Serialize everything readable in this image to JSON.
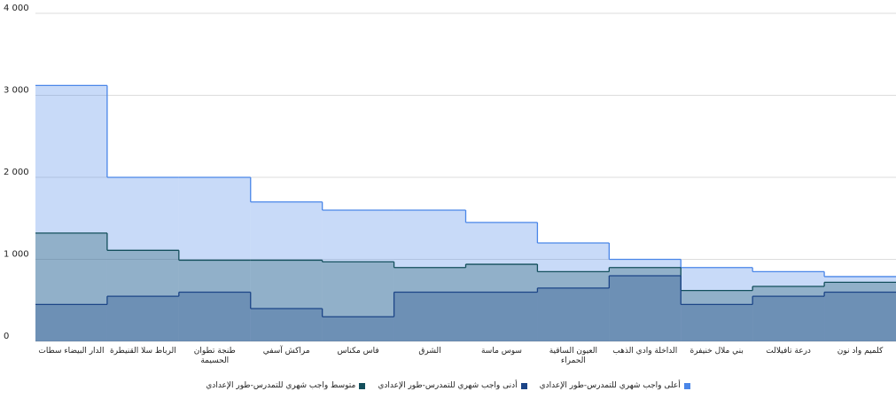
{
  "chart_data": {
    "type": "step-area",
    "categories": [
      "الدار البيضاء سطات",
      "الرباط سلا القنيطرة",
      "طنجة تطوان الحسيمة",
      "مراكش آسفي",
      "فاس مكناس",
      "الشرق",
      "سوس ماسة",
      "العيون الساقية الحمراء",
      "الداخلة وادي الذهب",
      "بني ملال خنيفرة",
      "درعة تافيلالت",
      "كلميم واد نون"
    ],
    "series": [
      {
        "name": "أعلى واجب شهري للتمدرس-طور الإعدادي",
        "color": "#4a86e8",
        "values": [
          3120,
          2000,
          2000,
          1700,
          1600,
          1600,
          1450,
          1200,
          1000,
          900,
          850,
          790
        ]
      },
      {
        "name": "متوسط واجب شهري للتمدرس-طور الإعدادي",
        "color": "#134f5c",
        "values": [
          1320,
          1110,
          990,
          990,
          970,
          900,
          940,
          850,
          900,
          620,
          670,
          720
        ]
      },
      {
        "name": "أدنى واجب شهري للتمدرس-طور الإعدادي",
        "color": "#1c4587",
        "values": [
          450,
          550,
          600,
          400,
          300,
          600,
          600,
          650,
          800,
          450,
          550,
          600
        ]
      }
    ],
    "legend_order": [
      0,
      2,
      1
    ],
    "ylim": [
      0,
      4000
    ],
    "yticks": [
      0,
      {
        "value": 1000,
        "label": "1 000"
      },
      {
        "value": 2000,
        "label": "2 000"
      },
      {
        "value": 3000,
        "label": "3 000"
      },
      {
        "value": 4000,
        "label": "4 000"
      }
    ],
    "grid": true
  }
}
